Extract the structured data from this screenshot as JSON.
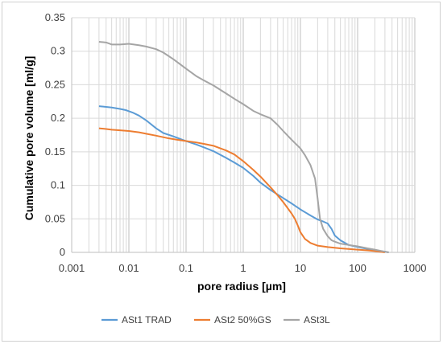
{
  "chart_data": {
    "type": "line",
    "title": "",
    "xlabel": "pore radius [µm]",
    "ylabel": "Cumulative pore volume [ml/g]",
    "x_scale": "log",
    "xlim": [
      0.001,
      1000
    ],
    "ylim": [
      0,
      0.35
    ],
    "grid": true,
    "legend_position": "bottom",
    "x_tick_labels": [
      "0.001",
      "0.01",
      "0.1",
      "1",
      "10",
      "100",
      "1000"
    ],
    "y_tick_labels": [
      "0",
      "0.05",
      "0.1",
      "0.15",
      "0.2",
      "0.25",
      "0.3",
      "0.35"
    ],
    "series": [
      {
        "name": "ASt1 TRAD",
        "color": "#5B9BD5",
        "points": [
          [
            0.003,
            0.218
          ],
          [
            0.004,
            0.217
          ],
          [
            0.005,
            0.216
          ],
          [
            0.007,
            0.214
          ],
          [
            0.009,
            0.212
          ],
          [
            0.012,
            0.208
          ],
          [
            0.015,
            0.204
          ],
          [
            0.02,
            0.197
          ],
          [
            0.03,
            0.185
          ],
          [
            0.04,
            0.178
          ],
          [
            0.06,
            0.173
          ],
          [
            0.1,
            0.166
          ],
          [
            0.15,
            0.161
          ],
          [
            0.2,
            0.157
          ],
          [
            0.3,
            0.151
          ],
          [
            0.5,
            0.141
          ],
          [
            0.7,
            0.134
          ],
          [
            1,
            0.126
          ],
          [
            1.5,
            0.114
          ],
          [
            2,
            0.104
          ],
          [
            3,
            0.093
          ],
          [
            5,
            0.081
          ],
          [
            7,
            0.073
          ],
          [
            10,
            0.064
          ],
          [
            15,
            0.055
          ],
          [
            20,
            0.049
          ],
          [
            25,
            0.046
          ],
          [
            30,
            0.043
          ],
          [
            35,
            0.035
          ],
          [
            40,
            0.025
          ],
          [
            50,
            0.018
          ],
          [
            70,
            0.011
          ],
          [
            100,
            0.008
          ],
          [
            150,
            0.005
          ],
          [
            200,
            0.003
          ],
          [
            300,
            0.001
          ],
          [
            350,
            0.0
          ]
        ]
      },
      {
        "name": "ASt2 50%GS",
        "color": "#ED7D31",
        "points": [
          [
            0.003,
            0.185
          ],
          [
            0.004,
            0.184
          ],
          [
            0.005,
            0.183
          ],
          [
            0.007,
            0.182
          ],
          [
            0.01,
            0.181
          ],
          [
            0.015,
            0.179
          ],
          [
            0.02,
            0.177
          ],
          [
            0.03,
            0.174
          ],
          [
            0.05,
            0.17
          ],
          [
            0.07,
            0.168
          ],
          [
            0.1,
            0.166
          ],
          [
            0.15,
            0.164
          ],
          [
            0.2,
            0.162
          ],
          [
            0.3,
            0.159
          ],
          [
            0.5,
            0.152
          ],
          [
            0.7,
            0.146
          ],
          [
            1,
            0.136
          ],
          [
            1.5,
            0.123
          ],
          [
            2,
            0.113
          ],
          [
            3,
            0.097
          ],
          [
            4,
            0.085
          ],
          [
            5,
            0.075
          ],
          [
            7,
            0.058
          ],
          [
            8,
            0.05
          ],
          [
            9,
            0.04
          ],
          [
            10,
            0.03
          ],
          [
            12,
            0.02
          ],
          [
            15,
            0.014
          ],
          [
            20,
            0.01
          ],
          [
            30,
            0.008
          ],
          [
            50,
            0.006
          ],
          [
            100,
            0.004
          ],
          [
            150,
            0.003
          ],
          [
            200,
            0.002
          ],
          [
            300,
            0.0
          ]
        ]
      },
      {
        "name": "ASt3L",
        "color": "#A5A5A5",
        "points": [
          [
            0.003,
            0.314
          ],
          [
            0.004,
            0.313
          ],
          [
            0.005,
            0.31
          ],
          [
            0.007,
            0.31
          ],
          [
            0.01,
            0.311
          ],
          [
            0.015,
            0.309
          ],
          [
            0.02,
            0.307
          ],
          [
            0.03,
            0.303
          ],
          [
            0.04,
            0.298
          ],
          [
            0.06,
            0.288
          ],
          [
            0.1,
            0.274
          ],
          [
            0.15,
            0.263
          ],
          [
            0.2,
            0.257
          ],
          [
            0.3,
            0.249
          ],
          [
            0.5,
            0.237
          ],
          [
            0.7,
            0.229
          ],
          [
            1,
            0.221
          ],
          [
            1.5,
            0.211
          ],
          [
            2,
            0.206
          ],
          [
            3,
            0.2
          ],
          [
            4,
            0.19
          ],
          [
            5,
            0.181
          ],
          [
            7,
            0.168
          ],
          [
            10,
            0.155
          ],
          [
            12,
            0.145
          ],
          [
            15,
            0.13
          ],
          [
            18,
            0.11
          ],
          [
            20,
            0.08
          ],
          [
            22,
            0.05
          ],
          [
            25,
            0.035
          ],
          [
            30,
            0.024
          ],
          [
            35,
            0.018
          ],
          [
            40,
            0.016
          ],
          [
            50,
            0.013
          ],
          [
            70,
            0.011
          ],
          [
            100,
            0.009
          ],
          [
            150,
            0.006
          ],
          [
            200,
            0.004
          ],
          [
            300,
            0.001
          ],
          [
            350,
            0.0
          ]
        ]
      }
    ]
  }
}
